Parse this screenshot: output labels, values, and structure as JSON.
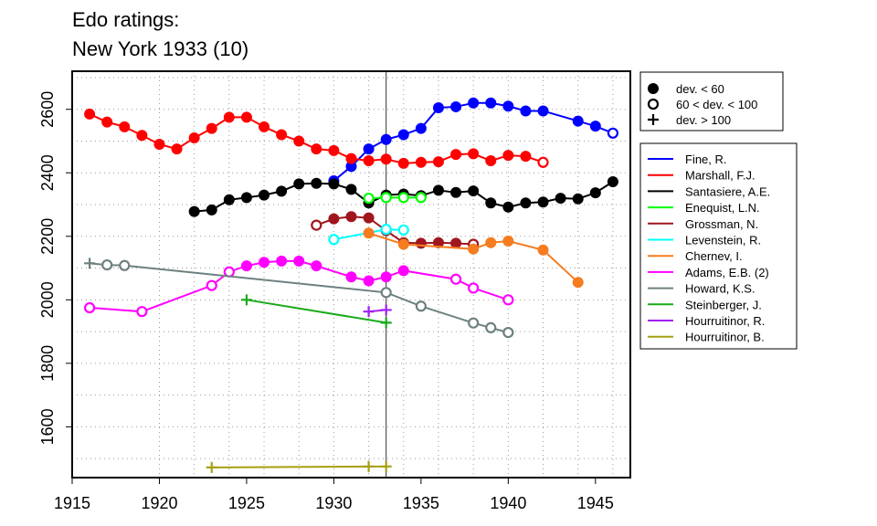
{
  "chart_data": {
    "type": "line",
    "title_lines": [
      "Edo ratings:",
      "New York 1933 (10)"
    ],
    "xlim": [
      1915,
      1947
    ],
    "ylim": [
      1440,
      2720
    ],
    "x_ticks": [
      1915,
      1920,
      1925,
      1930,
      1935,
      1940,
      1945
    ],
    "y_ticks": [
      1600,
      1800,
      2000,
      2200,
      2400,
      2600
    ],
    "grid": true,
    "reference_year": 1933,
    "marker_legend": [
      {
        "label": "dev. < 60",
        "marker": "filled"
      },
      {
        "label": "60 < dev. < 100",
        "marker": "open"
      },
      {
        "label": "dev. > 100",
        "marker": "plus"
      }
    ],
    "series": [
      {
        "name": "Fine, R.",
        "color": "#0000ff",
        "points": [
          [
            1930,
            2375,
            "f"
          ],
          [
            1931,
            2420,
            "f"
          ],
          [
            1932,
            2475,
            "f"
          ],
          [
            1933,
            2505,
            "f"
          ],
          [
            1934,
            2520,
            "f"
          ],
          [
            1935,
            2540,
            "f"
          ],
          [
            1936,
            2605,
            "f"
          ],
          [
            1937,
            2608,
            "f"
          ],
          [
            1938,
            2620,
            "f"
          ],
          [
            1939,
            2620,
            "f"
          ],
          [
            1940,
            2610,
            "f"
          ],
          [
            1941,
            2595,
            "f"
          ],
          [
            1942,
            2595,
            "f"
          ],
          [
            1944,
            2563,
            "f"
          ],
          [
            1945,
            2547,
            "f"
          ],
          [
            1946,
            2525,
            "o"
          ]
        ]
      },
      {
        "name": "Marshall, F.J.",
        "color": "#ff0000",
        "points": [
          [
            1916,
            2585,
            "f"
          ],
          [
            1917,
            2560,
            "f"
          ],
          [
            1918,
            2545,
            "f"
          ],
          [
            1919,
            2518,
            "f"
          ],
          [
            1920,
            2490,
            "f"
          ],
          [
            1921,
            2475,
            "f"
          ],
          [
            1922,
            2510,
            "f"
          ],
          [
            1923,
            2540,
            "f"
          ],
          [
            1924,
            2575,
            "f"
          ],
          [
            1925,
            2575,
            "f"
          ],
          [
            1926,
            2545,
            "f"
          ],
          [
            1927,
            2520,
            "f"
          ],
          [
            1928,
            2500,
            "f"
          ],
          [
            1929,
            2475,
            "f"
          ],
          [
            1930,
            2470,
            "f"
          ],
          [
            1931,
            2445,
            "f"
          ],
          [
            1932,
            2438,
            "f"
          ],
          [
            1933,
            2443,
            "f"
          ],
          [
            1934,
            2430,
            "f"
          ],
          [
            1935,
            2433,
            "f"
          ],
          [
            1936,
            2435,
            "f"
          ],
          [
            1937,
            2458,
            "f"
          ],
          [
            1938,
            2460,
            "f"
          ],
          [
            1939,
            2438,
            "f"
          ],
          [
            1940,
            2455,
            "f"
          ],
          [
            1941,
            2452,
            "f"
          ],
          [
            1942,
            2433,
            "o"
          ]
        ]
      },
      {
        "name": "Santasiere, A.E.",
        "color": "#000000",
        "points": [
          [
            1922,
            2278,
            "f"
          ],
          [
            1923,
            2283,
            "f"
          ],
          [
            1924,
            2315,
            "f"
          ],
          [
            1925,
            2322,
            "f"
          ],
          [
            1926,
            2330,
            "f"
          ],
          [
            1927,
            2342,
            "f"
          ],
          [
            1928,
            2365,
            "f"
          ],
          [
            1929,
            2367,
            "f"
          ],
          [
            1930,
            2365,
            "f"
          ],
          [
            1931,
            2348,
            "f"
          ],
          [
            1932,
            2305,
            "f"
          ],
          [
            1933,
            2330,
            "f"
          ],
          [
            1934,
            2333,
            "f"
          ],
          [
            1935,
            2328,
            "f"
          ],
          [
            1936,
            2345,
            "f"
          ],
          [
            1937,
            2338,
            "f"
          ],
          [
            1938,
            2343,
            "f"
          ],
          [
            1939,
            2305,
            "f"
          ],
          [
            1940,
            2292,
            "f"
          ],
          [
            1941,
            2305,
            "f"
          ],
          [
            1942,
            2308,
            "f"
          ],
          [
            1943,
            2320,
            "f"
          ],
          [
            1944,
            2318,
            "f"
          ],
          [
            1945,
            2337,
            "f"
          ],
          [
            1946,
            2372,
            "f"
          ]
        ]
      },
      {
        "name": "Enequist, L.N.",
        "color": "#00ff00",
        "points": [
          [
            1932,
            2320,
            "o"
          ],
          [
            1933,
            2322,
            "o"
          ],
          [
            1934,
            2322,
            "o"
          ],
          [
            1935,
            2322,
            "o"
          ]
        ]
      },
      {
        "name": "Grossman, N.",
        "color": "#a0161e",
        "points": [
          [
            1929,
            2235,
            "o"
          ],
          [
            1930,
            2255,
            "f"
          ],
          [
            1931,
            2262,
            "f"
          ],
          [
            1932,
            2258,
            "f"
          ],
          [
            1933,
            2218,
            "f"
          ],
          [
            1934,
            2180,
            "f"
          ],
          [
            1935,
            2178,
            "f"
          ],
          [
            1936,
            2180,
            "f"
          ],
          [
            1937,
            2178,
            "f"
          ],
          [
            1938,
            2175,
            "o"
          ]
        ]
      },
      {
        "name": "Levenstein, R.",
        "color": "#00ffff",
        "points": [
          [
            1930,
            2190,
            "o"
          ],
          [
            1933,
            2222,
            "o"
          ],
          [
            1934,
            2220,
            "o"
          ]
        ]
      },
      {
        "name": "Chernev, I.",
        "color": "#f57c1f",
        "points": [
          [
            1932,
            2210,
            "f"
          ],
          [
            1934,
            2175,
            "f"
          ],
          [
            1938,
            2160,
            "f"
          ],
          [
            1939,
            2180,
            "f"
          ],
          [
            1940,
            2185,
            "f"
          ],
          [
            1942,
            2157,
            "f"
          ],
          [
            1944,
            2055,
            "f"
          ]
        ]
      },
      {
        "name": "Adams, E.B. (2)",
        "color": "#ff00ff",
        "points": [
          [
            1916,
            1975,
            "o"
          ],
          [
            1919,
            1963,
            "o"
          ],
          [
            1923,
            2045,
            "o"
          ],
          [
            1924,
            2088,
            "o"
          ],
          [
            1925,
            2107,
            "f"
          ],
          [
            1926,
            2118,
            "f"
          ],
          [
            1927,
            2122,
            "f"
          ],
          [
            1928,
            2122,
            "f"
          ],
          [
            1929,
            2107,
            "f"
          ],
          [
            1931,
            2072,
            "f"
          ],
          [
            1932,
            2060,
            "f"
          ],
          [
            1933,
            2072,
            "f"
          ],
          [
            1934,
            2092,
            "f"
          ],
          [
            1937,
            2065,
            "o"
          ],
          [
            1938,
            2037,
            "o"
          ],
          [
            1940,
            2000,
            "o"
          ]
        ]
      },
      {
        "name": "Howard, K.S.",
        "color": "#6e8080",
        "points": [
          [
            1916,
            2115,
            "p"
          ],
          [
            1917,
            2110,
            "o"
          ],
          [
            1918,
            2108,
            "o"
          ],
          [
            1933,
            2023,
            "o"
          ],
          [
            1935,
            1980,
            "o"
          ],
          [
            1938,
            1927,
            "o"
          ],
          [
            1939,
            1912,
            "o"
          ],
          [
            1940,
            1897,
            "o"
          ]
        ]
      },
      {
        "name": "Steinberger, J.",
        "color": "#1aaa1a",
        "points": [
          [
            1925,
            2000,
            "p"
          ],
          [
            1933,
            1928,
            "p"
          ]
        ]
      },
      {
        "name": "Hourruitinor, R.",
        "color": "#a020f0",
        "points": [
          [
            1932,
            1963,
            "p"
          ],
          [
            1933,
            1968,
            "p"
          ]
        ]
      },
      {
        "name": "Hourruitinor, B.",
        "color": "#a5a00f",
        "points": [
          [
            1923,
            1472,
            "p"
          ],
          [
            1932,
            1475,
            "p"
          ],
          [
            1933,
            1475,
            "p"
          ]
        ]
      }
    ]
  }
}
